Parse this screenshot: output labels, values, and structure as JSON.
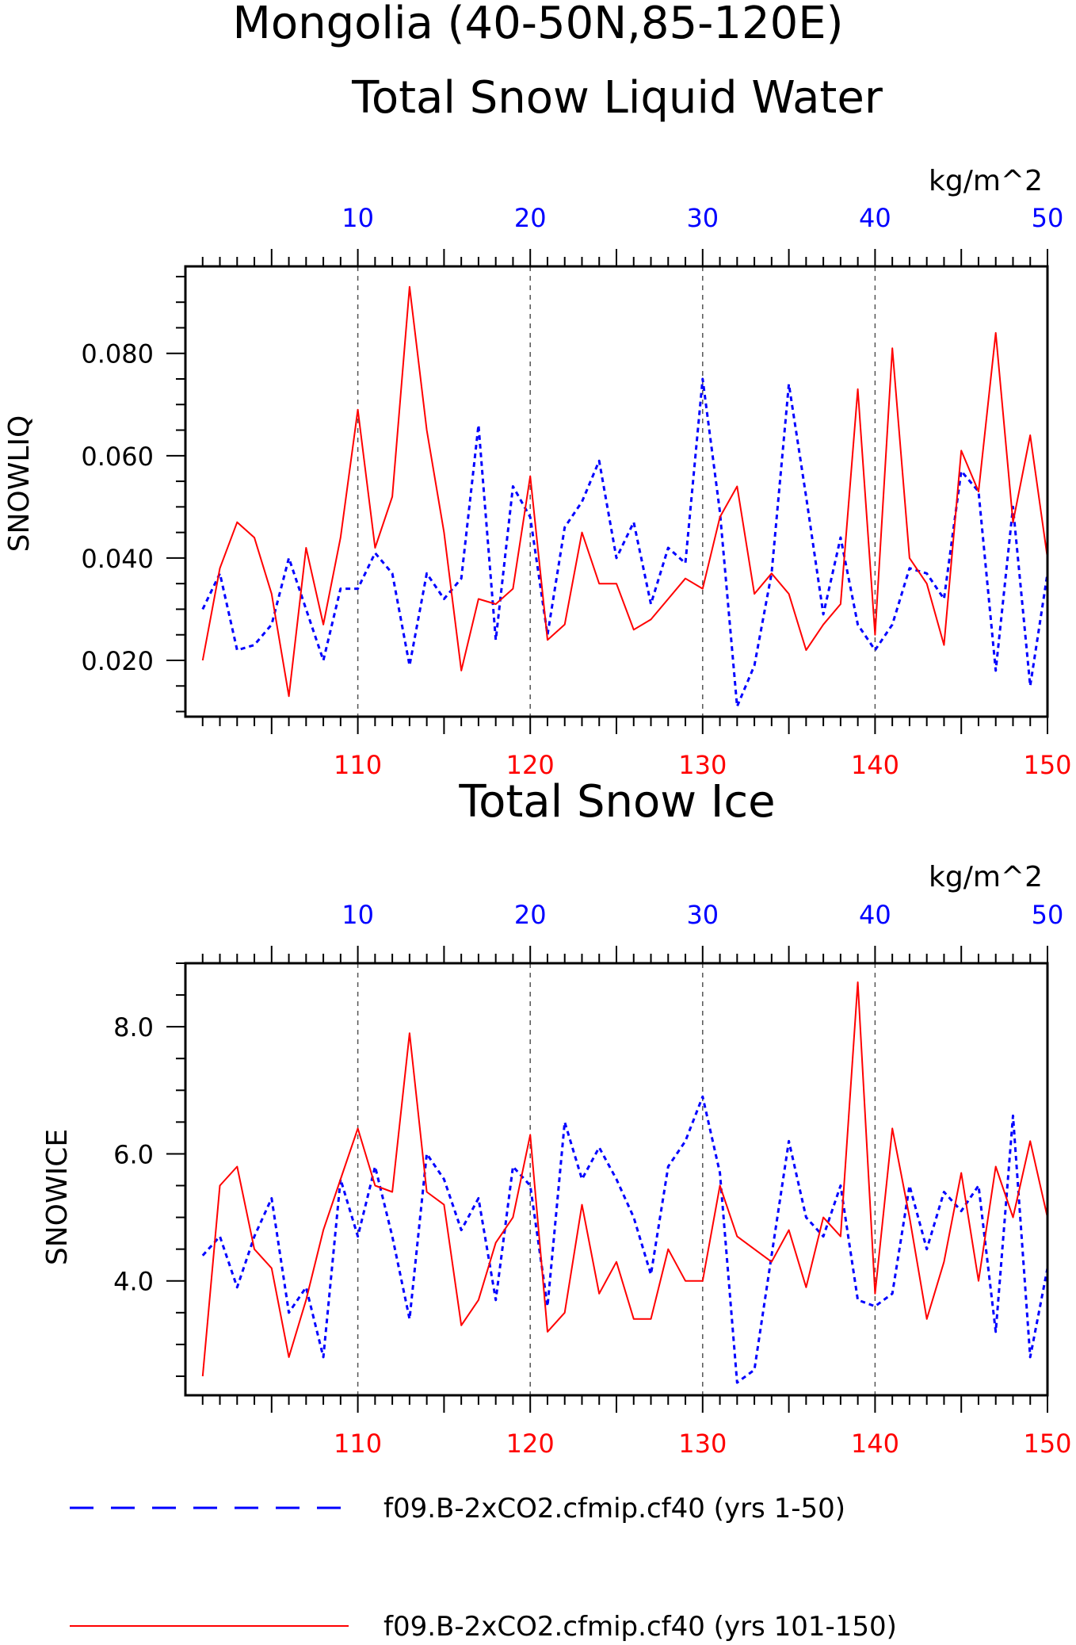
{
  "figure": {
    "title_line1": "Mongolia (40-50N,85-120E)",
    "legend": [
      {
        "label": "f09.B-2xCO2.cfmip.cf40 (yrs 1-50)",
        "color": "#0000ff",
        "style": "dashed"
      },
      {
        "label": "f09.B-2xCO2.cfmip.cf40 (yrs 101-150)",
        "color": "#ff0000",
        "style": "solid"
      }
    ]
  },
  "chart_data": [
    {
      "type": "line",
      "title": "Total Snow Liquid Water",
      "units": "kg/m^2",
      "ylabel": "SNOWLIQ",
      "ylim": [
        0.009,
        0.097
      ],
      "yticks": [
        "0.020",
        "0.040",
        "0.060",
        "0.080"
      ],
      "ytick_values": [
        0.02,
        0.04,
        0.06,
        0.08
      ],
      "top_axis": {
        "range": [
          1,
          50
        ],
        "ticks": [
          10,
          20,
          30,
          40,
          50
        ],
        "color": "#0000ff"
      },
      "bottom_axis": {
        "range": [
          101,
          150
        ],
        "ticks": [
          110,
          120,
          130,
          140,
          150
        ],
        "color": "#ff0000"
      },
      "grid": "vertical dashed at major ticks",
      "series": [
        {
          "name": "f09.B-2xCO2.cfmip.cf40 (yrs 1-50)",
          "axis": "top",
          "color": "#0000ff",
          "style": "dashed",
          "x": [
            1,
            2,
            3,
            4,
            5,
            6,
            7,
            8,
            9,
            10,
            11,
            12,
            13,
            14,
            15,
            16,
            17,
            18,
            19,
            20,
            21,
            22,
            23,
            24,
            25,
            26,
            27,
            28,
            29,
            30,
            31,
            32,
            33,
            34,
            35,
            36,
            37,
            38,
            39,
            40,
            41,
            42,
            43,
            44,
            45,
            46,
            47,
            48,
            49,
            50
          ],
          "values": [
            0.03,
            0.037,
            0.022,
            0.023,
            0.027,
            0.04,
            0.03,
            0.02,
            0.034,
            0.034,
            0.041,
            0.037,
            0.019,
            0.037,
            0.032,
            0.036,
            0.066,
            0.024,
            0.054,
            0.048,
            0.025,
            0.046,
            0.051,
            0.059,
            0.04,
            0.047,
            0.031,
            0.042,
            0.039,
            0.075,
            0.049,
            0.011,
            0.019,
            0.037,
            0.074,
            0.052,
            0.029,
            0.044,
            0.027,
            0.022,
            0.027,
            0.038,
            0.037,
            0.032,
            0.057,
            0.053,
            0.018,
            0.05,
            0.015,
            0.037
          ]
        },
        {
          "name": "f09.B-2xCO2.cfmip.cf40 (yrs 101-150)",
          "axis": "bottom",
          "color": "#ff0000",
          "style": "solid",
          "x": [
            101,
            102,
            103,
            104,
            105,
            106,
            107,
            108,
            109,
            110,
            111,
            112,
            113,
            114,
            115,
            116,
            117,
            118,
            119,
            120,
            121,
            122,
            123,
            124,
            125,
            126,
            127,
            128,
            129,
            130,
            131,
            132,
            133,
            134,
            135,
            136,
            137,
            138,
            139,
            140,
            141,
            142,
            143,
            144,
            145,
            146,
            147,
            148,
            149,
            150
          ],
          "values": [
            0.02,
            0.038,
            0.047,
            0.044,
            0.033,
            0.013,
            0.042,
            0.027,
            0.044,
            0.069,
            0.042,
            0.052,
            0.093,
            0.065,
            0.045,
            0.018,
            0.032,
            0.031,
            0.034,
            0.056,
            0.024,
            0.027,
            0.045,
            0.035,
            0.035,
            0.026,
            0.028,
            0.032,
            0.036,
            0.034,
            0.048,
            0.054,
            0.033,
            0.037,
            0.033,
            0.022,
            0.027,
            0.031,
            0.073,
            0.025,
            0.081,
            0.04,
            0.035,
            0.023,
            0.061,
            0.053,
            0.084,
            0.047,
            0.064,
            0.04
          ]
        }
      ]
    },
    {
      "type": "line",
      "title": "Total Snow Ice",
      "units": "kg/m^2",
      "ylabel": "SNOWICE",
      "ylim": [
        2.2,
        9.0
      ],
      "yticks": [
        "4.0",
        "6.0",
        "8.0"
      ],
      "ytick_values": [
        4.0,
        6.0,
        8.0
      ],
      "top_axis": {
        "range": [
          1,
          50
        ],
        "ticks": [
          10,
          20,
          30,
          40,
          50
        ],
        "color": "#0000ff"
      },
      "bottom_axis": {
        "range": [
          101,
          150
        ],
        "ticks": [
          110,
          120,
          130,
          140,
          150
        ],
        "color": "#ff0000"
      },
      "grid": "vertical dashed at major ticks",
      "series": [
        {
          "name": "f09.B-2xCO2.cfmip.cf40 (yrs 1-50)",
          "axis": "top",
          "color": "#0000ff",
          "style": "dashed",
          "x": [
            1,
            2,
            3,
            4,
            5,
            6,
            7,
            8,
            9,
            10,
            11,
            12,
            13,
            14,
            15,
            16,
            17,
            18,
            19,
            20,
            21,
            22,
            23,
            24,
            25,
            26,
            27,
            28,
            29,
            30,
            31,
            32,
            33,
            34,
            35,
            36,
            37,
            38,
            39,
            40,
            41,
            42,
            43,
            44,
            45,
            46,
            47,
            48,
            49,
            50
          ],
          "values": [
            4.4,
            4.7,
            3.9,
            4.7,
            5.3,
            3.5,
            3.9,
            2.8,
            5.6,
            4.7,
            5.8,
            4.7,
            3.4,
            6.0,
            5.6,
            4.8,
            5.3,
            3.7,
            5.8,
            5.5,
            3.6,
            6.5,
            5.6,
            6.1,
            5.6,
            5.0,
            4.1,
            5.8,
            6.2,
            6.9,
            5.7,
            2.4,
            2.6,
            4.4,
            6.2,
            5.0,
            4.7,
            5.5,
            3.7,
            3.6,
            3.8,
            5.5,
            4.5,
            5.4,
            5.1,
            5.5,
            3.2,
            6.6,
            2.8,
            4.2
          ]
        },
        {
          "name": "f09.B-2xCO2.cfmip.cf40 (yrs 101-150)",
          "axis": "bottom",
          "color": "#ff0000",
          "style": "solid",
          "x": [
            101,
            102,
            103,
            104,
            105,
            106,
            107,
            108,
            109,
            110,
            111,
            112,
            113,
            114,
            115,
            116,
            117,
            118,
            119,
            120,
            121,
            122,
            123,
            124,
            125,
            126,
            127,
            128,
            129,
            130,
            131,
            132,
            133,
            134,
            135,
            136,
            137,
            138,
            139,
            140,
            141,
            142,
            143,
            144,
            145,
            146,
            147,
            148,
            149,
            150
          ],
          "values": [
            2.5,
            5.5,
            5.8,
            4.5,
            4.2,
            2.8,
            3.7,
            4.8,
            5.6,
            6.4,
            5.5,
            5.4,
            7.9,
            5.4,
            5.2,
            3.3,
            3.7,
            4.6,
            5.0,
            6.3,
            3.2,
            3.5,
            5.2,
            3.8,
            4.3,
            3.4,
            3.4,
            4.5,
            4.0,
            4.0,
            5.5,
            4.7,
            4.5,
            4.3,
            4.8,
            3.9,
            5.0,
            4.7,
            8.7,
            3.8,
            6.4,
            5.0,
            3.4,
            4.3,
            5.7,
            4.0,
            5.8,
            5.0,
            6.2,
            5.0
          ]
        }
      ]
    }
  ]
}
